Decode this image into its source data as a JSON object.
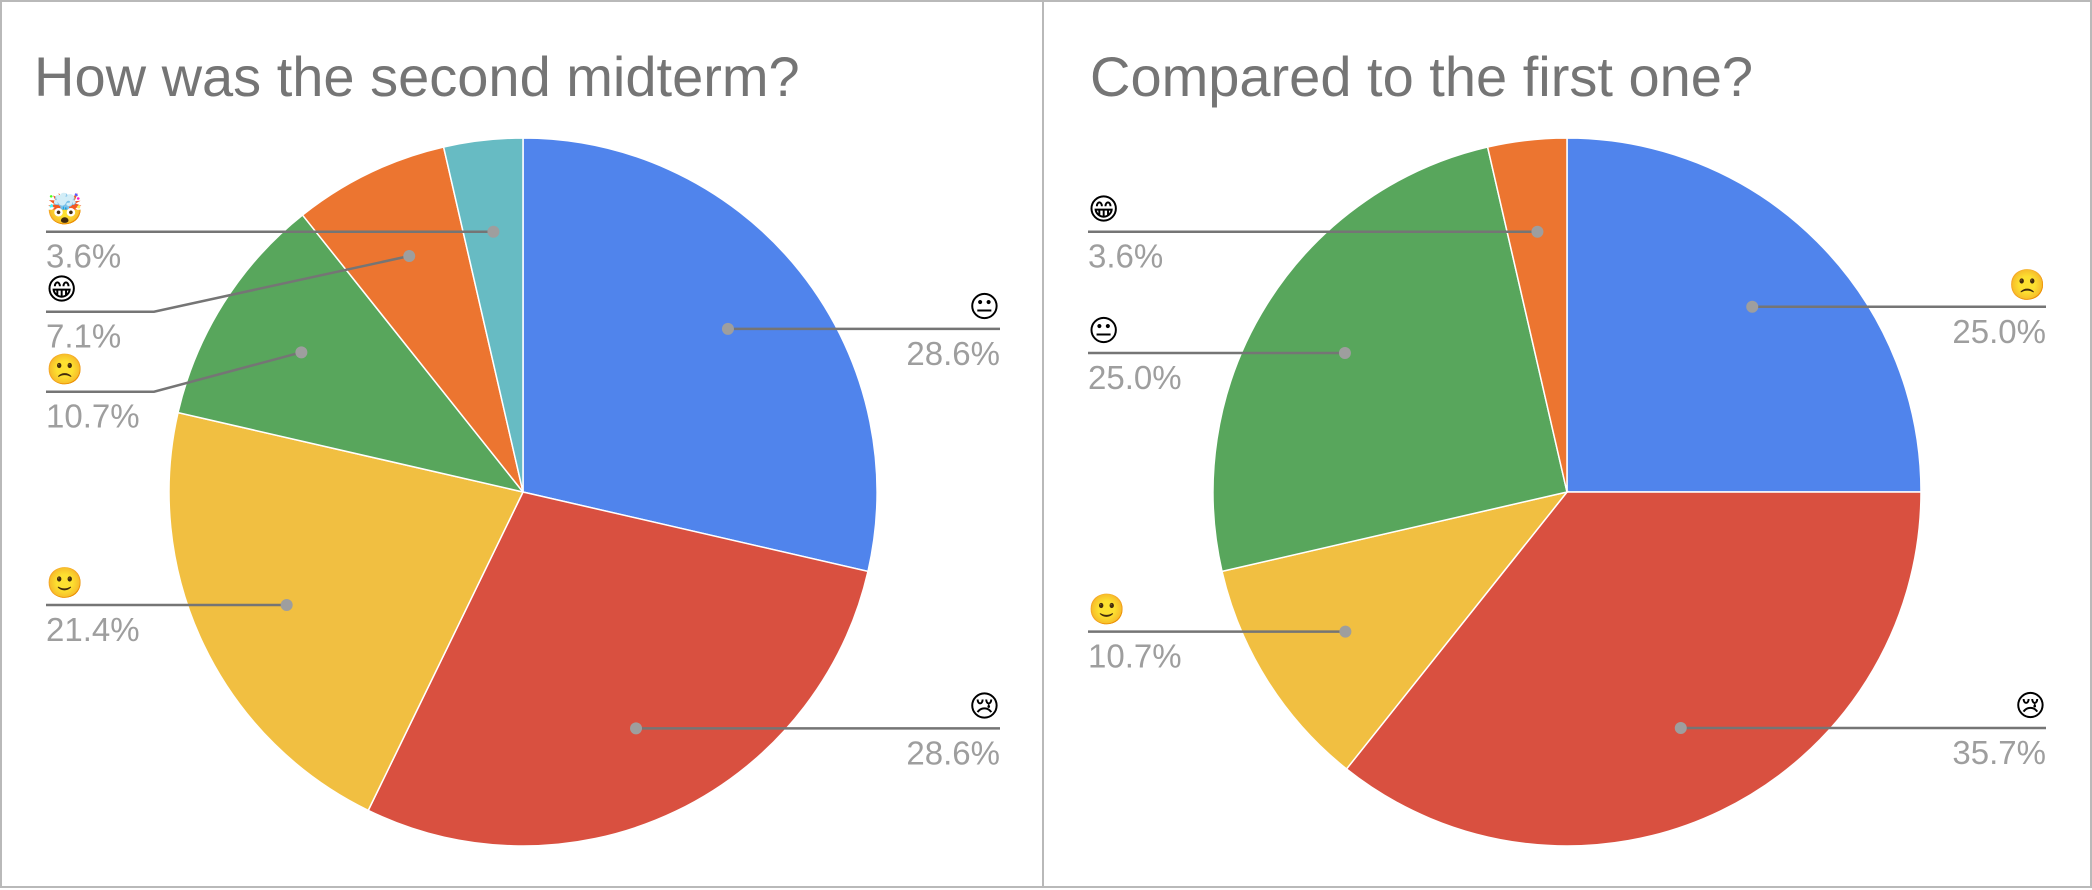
{
  "chart_data": [
    {
      "type": "pie",
      "title": "How was the second midterm?",
      "slices": [
        {
          "label": "😐",
          "value": 28.6,
          "value_label": "28.6%",
          "color": "#5084ec"
        },
        {
          "label": "😢",
          "value": 28.6,
          "value_label": "28.6%",
          "color": "#d95040"
        },
        {
          "label": "🙂",
          "value": 21.4,
          "value_label": "21.4%",
          "color": "#f1bf41"
        },
        {
          "label": "🙁",
          "value": 10.7,
          "value_label": "10.7%",
          "color": "#58a65c"
        },
        {
          "label": "😁",
          "value": 7.1,
          "value_label": "7.1%",
          "color": "#ec7530"
        },
        {
          "label": "🤯",
          "value": 3.6,
          "value_label": "3.6%",
          "color": "#67bbc3"
        }
      ],
      "start_angle_deg": 0,
      "direction": "clockwise",
      "labels": "outside with leader lines"
    },
    {
      "type": "pie",
      "title": "Compared to the first one?",
      "slices": [
        {
          "label": "🙁",
          "value": 25.0,
          "value_label": "25.0%",
          "color": "#5084ec"
        },
        {
          "label": "😢",
          "value": 35.7,
          "value_label": "35.7%",
          "color": "#d95040"
        },
        {
          "label": "🙂",
          "value": 10.7,
          "value_label": "10.7%",
          "color": "#f1bf41"
        },
        {
          "label": "😐",
          "value": 25.0,
          "value_label": "25.0%",
          "color": "#58a65c"
        },
        {
          "label": "😁",
          "value": 3.6,
          "value_label": "3.6%",
          "color": "#ec7530"
        }
      ],
      "start_angle_deg": 0,
      "direction": "clockwise",
      "labels": "outside with leader lines"
    }
  ]
}
